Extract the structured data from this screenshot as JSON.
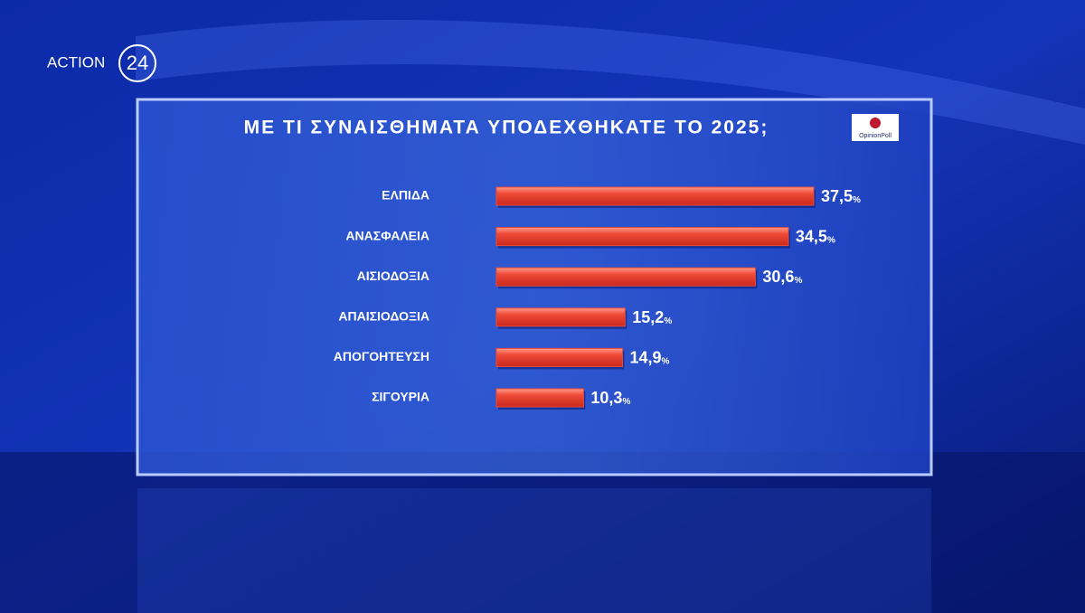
{
  "branding": {
    "channel": "ACTION",
    "channel_number": "24",
    "pollster": "OpinionPoll"
  },
  "chart_data": {
    "type": "bar",
    "orientation": "horizontal",
    "title": "ΜΕ ΤΙ ΣΥΝΑΙΣΘΗΜΑΤΑ ΥΠΟΔΕΧΘΗΚΑΤΕ ΤΟ 2025;",
    "categories": [
      "ΕΛΠΙΔΑ",
      "ΑΝΑΣΦΑΛΕΙΑ",
      "ΑΙΣΙΟΔΟΞΙΑ",
      "ΑΠΑΙΣΙΟΔΟΞΙΑ",
      "ΑΠΟΓΟΗΤΕΥΣΗ",
      "ΣΙΓΟΥΡΙΑ"
    ],
    "values": [
      37.5,
      34.5,
      30.6,
      15.2,
      14.9,
      10.3
    ],
    "value_labels": [
      "37,5%",
      "34,5%",
      "30,6%",
      "15,2%",
      "14,9%",
      "10,3%"
    ],
    "color": "#f04a38"
  }
}
